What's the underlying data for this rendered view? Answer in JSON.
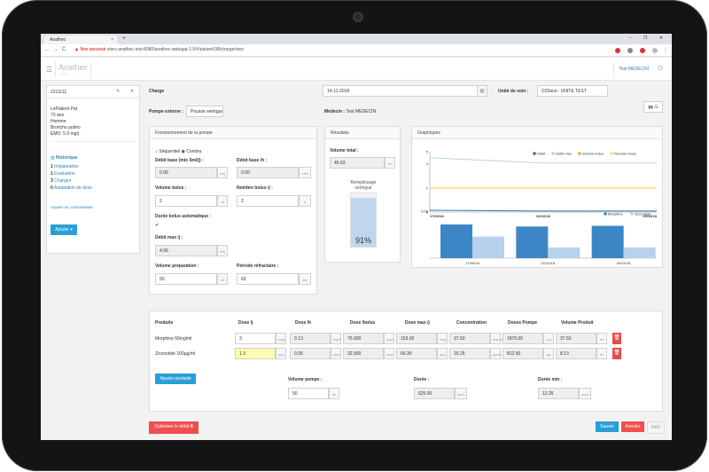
{
  "browser": {
    "tab_title": "Anathec",
    "tab_close": "×",
    "new_tab": "+",
    "window_controls": "–  ❐  ✕",
    "nav_back": "←",
    "nav_forward": "→",
    "nav_reload": "C",
    "security_label": "▲ Non sécurisé",
    "url": "stsrv-anathec-test:8080/anathec-webapp-1.0/#/patient/38/charge/new"
  },
  "header": {
    "menu_icon": "☰",
    "logo": "Anathec",
    "logo_sub": "v1.0.0",
    "user": "Test MEDECIN",
    "power_icon": "⏻"
  },
  "patient": {
    "id": "1211111",
    "edit_icon": "✎",
    "close_icon": "✕",
    "name": "LePatient Pat",
    "age": "73 ans",
    "sex": "Homme",
    "diagnosis": "Broncho pulmo",
    "emd": "EMO: 5.0 mg/j",
    "history_title": "Historique",
    "history": [
      {
        "count": "1",
        "label": "Implantation"
      },
      {
        "count": "1",
        "label": "Evaluation"
      },
      {
        "count": "3",
        "label": "Charges"
      },
      {
        "count": "0",
        "label": "Adaptation de dose"
      }
    ],
    "add_comment": "Ajouter un commentaire",
    "add_button": "Ajouter ▾"
  },
  "charge": {
    "title": "Charge",
    "date": "14-11-2018",
    "calendar_icon": "▦",
    "care_unit_label": "Unité de soin :",
    "care_unit_value": "C01test - UNITE TEST",
    "pump_label": "Pompe externe :",
    "pump_value": "Pousse seringue",
    "doctor_label": "Médecin :",
    "doctor_value": "Test MEDECIN",
    "view_toggle": "▮▮ ☰"
  },
  "pump": {
    "title": "Fonctionnement de la pompe",
    "mode_sequential": "Séquentiel",
    "mode_continuous": "Continu",
    "debit_base_min_label": "Débit base (min 5ml/j) :",
    "debit_base_min_value": "0.06",
    "debit_base_min_unit": "ml/j",
    "debit_base_h_label": "Débit base /h :",
    "debit_base_h_value": "0.00",
    "debit_base_h_unit": "ml/h",
    "volume_bolus_label": "Volume bolus :",
    "volume_bolus_value": "2",
    "volume_bolus_unit": "ml",
    "nombre_bolus_label": "Nombre bolus /j :",
    "nombre_bolus_value": "2",
    "nombre_bolus_unit": "/j",
    "duree_bolus_label": "Durée bolus automatique :",
    "duree_bolus_check": "✔",
    "debit_max_label": "Débit max /j :",
    "debit_max_value": "4.06",
    "debit_max_unit": "ml/j",
    "volume_prep_label": "Volume préparation :",
    "volume_prep_value": "50",
    "volume_prep_unit": "ml",
    "periode_label": "Période réfractaire :",
    "periode_value": "60",
    "periode_unit": "min"
  },
  "results": {
    "title": "Résultats",
    "volume_total_label": "Volume total :",
    "volume_total_value": "45.63",
    "volume_total_unit": "ml",
    "fill_label": "Remplissage seringue",
    "fill_percent_label": "91%",
    "fill_fraction": 0.91
  },
  "graphs": {
    "title": "Graphiques"
  },
  "chart_data": [
    {
      "type": "line",
      "x": [
        "17/09/18",
        "02/10/18",
        "05/10/18"
      ],
      "yticks": [
        "5",
        "4",
        "2",
        "0.08",
        "0"
      ],
      "ylim": [
        0,
        5
      ],
      "legend_position": "top-right",
      "series": [
        {
          "name": "Débit",
          "color": "#2a72b5",
          "values": [
            0.15,
            0.08,
            0.08
          ]
        },
        {
          "name": "Débit max",
          "color": "#b8d1ec",
          "values": [
            4.5,
            4.06,
            4.06
          ]
        },
        {
          "name": "Volume bolus",
          "color": "#f5a623",
          "values": [
            2,
            2,
            2
          ]
        },
        {
          "name": "Nombre bolus",
          "color": "#f7e07a",
          "values": [
            2,
            2,
            2
          ]
        }
      ]
    },
    {
      "type": "bar",
      "categories": [
        "17/09/18",
        "02/10/18",
        "05/10/18"
      ],
      "legend_position": "top-right",
      "series": [
        {
          "name": "Morphine",
          "color": "#3d86c6",
          "values": [
            5,
            4.7,
            4.8
          ]
        },
        {
          "name": "Ziconotide",
          "color": "#b8d1ec",
          "values": [
            3.2,
            1.6,
            1.6
          ]
        }
      ]
    }
  ],
  "products": {
    "headers": [
      "Produits",
      "Dose /j",
      "Dose /h",
      "Dose /bolus",
      "Dose max /j",
      "Concentration",
      "Doses Pompe",
      "Volume Produit"
    ],
    "rows": [
      {
        "name": "Morphine 50mg/ml",
        "dose_j": "3",
        "dose_j_unit": "mg/j",
        "dose_h": "0.13",
        "dose_h_unit": "mg/h",
        "dose_bolus": "75.000",
        "dose_bolus_unit": "µg/b",
        "dose_max": "153.00",
        "dose_max_unit": "mg/j",
        "concentration": "37.50",
        "concentration_unit": "mg/ml",
        "doses_pompe": "1875.00",
        "doses_pompe_unit": "mg",
        "volume": "37.50",
        "volume_unit": "ml"
      },
      {
        "name": "Ziconotide 100µg/ml",
        "dose_j": "1.3",
        "dose_j_unit": "µg/j",
        "dose_h": "0.05",
        "dose_h_unit": "µg/h",
        "dose_bolus": "32.500",
        "dose_bolus_unit": "ng/b",
        "dose_max": "66.30",
        "dose_max_unit": "µg/j",
        "concentration": "16.25",
        "concentration_unit": "µg/ml",
        "doses_pompe": "812.50",
        "doses_pompe_unit": "µg",
        "volume": "8.13",
        "volume_unit": "ml"
      }
    ],
    "delete_icon": "🗑",
    "add_product": "Ajouter produit▾",
    "volume_pompe_label": "Volume pompe :",
    "volume_pompe_value": "50",
    "volume_pompe_unit": "ml",
    "duree_label": "Durée :",
    "duree_value": "625.00",
    "duree_unit": "jours",
    "duree_min_label": "Durée min :",
    "duree_min_value": "12.25",
    "duree_min_unit": "jours"
  },
  "footer": {
    "optimize": "Optimiser le débit 🖩",
    "save": "Sauver",
    "cancel": "Annuler",
    "reset": "RAZ"
  }
}
